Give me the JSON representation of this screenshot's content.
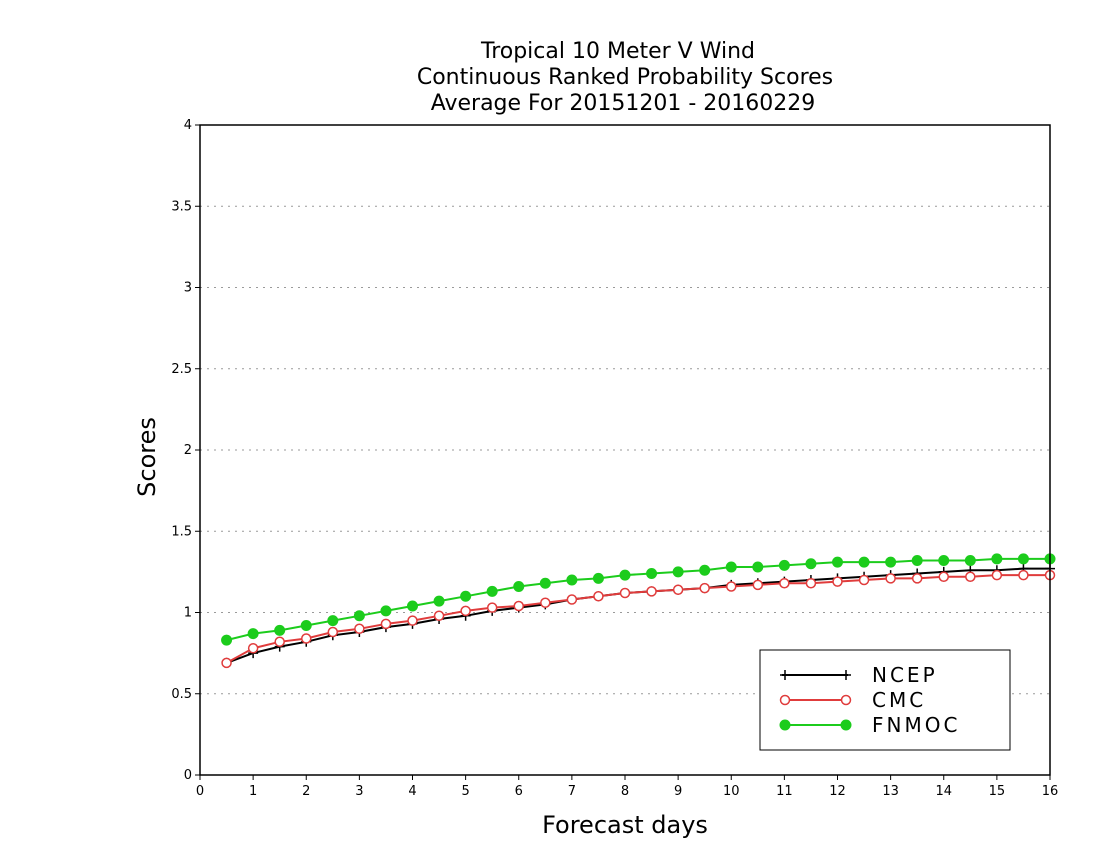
{
  "chart_data": {
    "type": "line",
    "title": [
      "Tropical 10 Meter V Wind",
      "Continuous Ranked Probability Scores",
      "Average For 20151201 - 20160229"
    ],
    "xlabel": "Forecast days",
    "ylabel": "Scores",
    "xlim": [
      0,
      16
    ],
    "ylim": [
      0,
      4
    ],
    "xticks": [
      0,
      1,
      2,
      3,
      4,
      5,
      6,
      7,
      8,
      9,
      10,
      11,
      12,
      13,
      14,
      15,
      16
    ],
    "yticks": [
      0,
      0.5,
      1,
      1.5,
      2,
      2.5,
      3,
      3.5,
      4
    ],
    "ytick_labels": [
      "0",
      "0.5",
      "1",
      "1.5",
      "2",
      "2.5",
      "3",
      "3.5",
      "4"
    ],
    "grid": "horizontal dotted",
    "legend_position": "bottom-right",
    "x": [
      0.5,
      1,
      1.5,
      2,
      2.5,
      3,
      3.5,
      4,
      4.5,
      5,
      5.5,
      6,
      6.5,
      7,
      7.5,
      8,
      8.5,
      9,
      9.5,
      10,
      10.5,
      11,
      11.5,
      12,
      12.5,
      13,
      13.5,
      14,
      14.5,
      15,
      15.5,
      16
    ],
    "series": [
      {
        "name": "NCEP",
        "color": "#000000",
        "marker": "plus",
        "values": [
          0.69,
          0.75,
          0.79,
          0.82,
          0.86,
          0.88,
          0.91,
          0.93,
          0.96,
          0.98,
          1.01,
          1.03,
          1.05,
          1.08,
          1.1,
          1.12,
          1.13,
          1.14,
          1.15,
          1.17,
          1.18,
          1.19,
          1.2,
          1.21,
          1.22,
          1.23,
          1.24,
          1.25,
          1.26,
          1.26,
          1.27,
          1.27
        ]
      },
      {
        "name": "CMC",
        "color": "#e03c3c",
        "marker": "open-circle",
        "values": [
          0.69,
          0.78,
          0.82,
          0.84,
          0.88,
          0.9,
          0.93,
          0.95,
          0.98,
          1.01,
          1.03,
          1.04,
          1.06,
          1.08,
          1.1,
          1.12,
          1.13,
          1.14,
          1.15,
          1.16,
          1.17,
          1.18,
          1.18,
          1.19,
          1.2,
          1.21,
          1.21,
          1.22,
          1.22,
          1.23,
          1.23,
          1.23
        ]
      },
      {
        "name": "FNMOC",
        "color": "#1ccc1c",
        "marker": "filled-circle",
        "values": [
          0.83,
          0.87,
          0.89,
          0.92,
          0.95,
          0.98,
          1.01,
          1.04,
          1.07,
          1.1,
          1.13,
          1.16,
          1.18,
          1.2,
          1.21,
          1.23,
          1.24,
          1.25,
          1.26,
          1.28,
          1.28,
          1.29,
          1.3,
          1.31,
          1.31,
          1.31,
          1.32,
          1.32,
          1.32,
          1.33,
          1.33,
          1.33
        ]
      }
    ]
  }
}
